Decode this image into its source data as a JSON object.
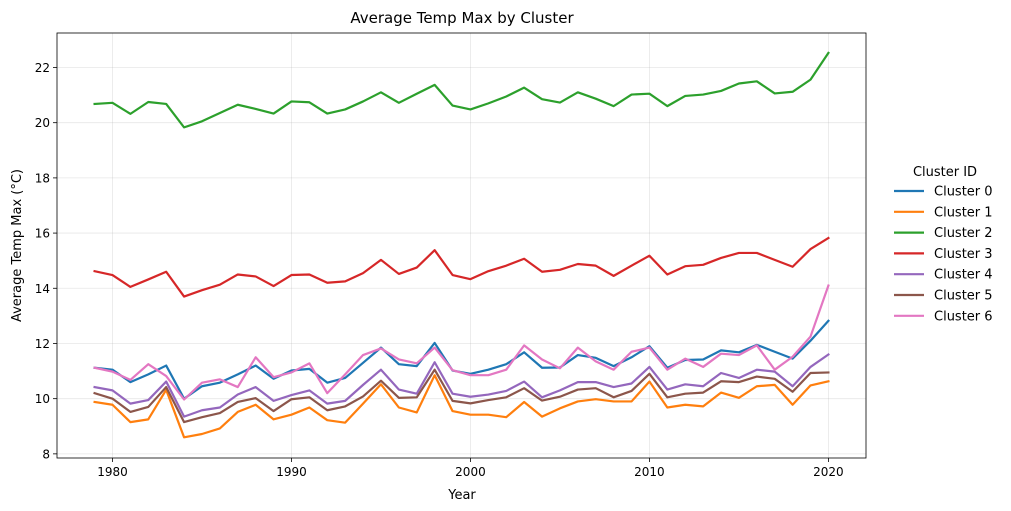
{
  "chart_data": {
    "type": "line",
    "title": "Average Temp Max by Cluster",
    "xlabel": "Year",
    "ylabel": "Average Temp Max (°C)",
    "xlim": [
      1976.9,
      2022.1
    ],
    "ylim": [
      7.85,
      23.25
    ],
    "xticks": [
      1980,
      1990,
      2000,
      2010,
      2020
    ],
    "yticks": [
      8,
      10,
      12,
      14,
      16,
      18,
      20,
      22
    ],
    "grid": true,
    "legend": {
      "title": "Cluster ID",
      "placement": "right-outside"
    },
    "x": [
      1979,
      1980,
      1981,
      1982,
      1983,
      1984,
      1985,
      1986,
      1987,
      1988,
      1989,
      1990,
      1991,
      1992,
      1993,
      1994,
      1995,
      1996,
      1997,
      1998,
      1999,
      2000,
      2001,
      2002,
      2003,
      2004,
      2005,
      2006,
      2007,
      2008,
      2009,
      2010,
      2011,
      2012,
      2013,
      2014,
      2015,
      2016,
      2017,
      2018,
      2019,
      2020
    ],
    "series": [
      {
        "name": "Cluster 0",
        "color": "#1f77b4",
        "values": [
          11.12,
          11.05,
          10.6,
          10.88,
          11.2,
          10.0,
          10.45,
          10.58,
          10.88,
          11.2,
          10.72,
          11.02,
          11.08,
          10.58,
          10.75,
          11.3,
          11.85,
          11.25,
          11.18,
          12.02,
          11.02,
          10.9,
          11.05,
          11.25,
          11.68,
          11.12,
          11.13,
          11.58,
          11.48,
          11.18,
          11.5,
          11.9,
          11.12,
          11.4,
          11.42,
          11.75,
          11.68,
          11.95,
          11.7,
          11.45,
          12.1,
          12.82
        ]
      },
      {
        "name": "Cluster 1",
        "color": "#ff7f0e",
        "values": [
          9.88,
          9.78,
          9.15,
          9.25,
          10.32,
          8.6,
          8.72,
          8.92,
          9.52,
          9.78,
          9.25,
          9.42,
          9.68,
          9.22,
          9.13,
          9.82,
          10.52,
          9.68,
          9.5,
          10.85,
          9.55,
          9.42,
          9.42,
          9.33,
          9.88,
          9.35,
          9.65,
          9.9,
          9.98,
          9.9,
          9.9,
          10.62,
          9.68,
          9.78,
          9.72,
          10.22,
          10.03,
          10.45,
          10.5,
          9.78,
          10.48,
          10.63
        ]
      },
      {
        "name": "Cluster 2",
        "color": "#2ca02c",
        "values": [
          20.68,
          20.72,
          20.32,
          20.75,
          20.68,
          19.83,
          20.05,
          20.35,
          20.65,
          20.5,
          20.33,
          20.77,
          20.74,
          20.33,
          20.48,
          20.77,
          21.1,
          20.72,
          21.05,
          21.37,
          20.62,
          20.48,
          20.7,
          20.95,
          21.27,
          20.85,
          20.73,
          21.1,
          20.87,
          20.6,
          21.02,
          21.05,
          20.6,
          20.97,
          21.02,
          21.15,
          21.42,
          21.5,
          21.06,
          21.12,
          21.56,
          22.53
        ]
      },
      {
        "name": "Cluster 3",
        "color": "#d62728",
        "values": [
          14.62,
          14.48,
          14.05,
          14.32,
          14.6,
          13.7,
          13.93,
          14.13,
          14.5,
          14.43,
          14.08,
          14.48,
          14.5,
          14.2,
          14.25,
          14.55,
          15.03,
          14.52,
          14.75,
          15.38,
          14.48,
          14.33,
          14.62,
          14.82,
          15.07,
          14.6,
          14.67,
          14.88,
          14.82,
          14.45,
          14.82,
          15.18,
          14.5,
          14.8,
          14.85,
          15.1,
          15.28,
          15.28,
          15.03,
          14.78,
          15.42,
          15.82
        ]
      },
      {
        "name": "Cluster 4",
        "color": "#9467bd",
        "values": [
          10.42,
          10.3,
          9.82,
          9.95,
          10.62,
          9.35,
          9.58,
          9.68,
          10.15,
          10.42,
          9.92,
          10.13,
          10.3,
          9.82,
          9.92,
          10.5,
          11.05,
          10.33,
          10.18,
          11.32,
          10.18,
          10.07,
          10.15,
          10.28,
          10.62,
          10.05,
          10.3,
          10.6,
          10.6,
          10.42,
          10.55,
          11.15,
          10.33,
          10.52,
          10.45,
          10.93,
          10.75,
          11.05,
          10.98,
          10.45,
          11.15,
          11.6
        ]
      },
      {
        "name": "Cluster 5",
        "color": "#8c564b",
        "values": [
          10.2,
          10.0,
          9.52,
          9.7,
          10.42,
          9.15,
          9.33,
          9.48,
          9.88,
          10.02,
          9.55,
          9.98,
          10.05,
          9.58,
          9.72,
          10.08,
          10.65,
          10.03,
          10.05,
          11.05,
          9.92,
          9.83,
          9.95,
          10.05,
          10.38,
          9.93,
          10.07,
          10.33,
          10.38,
          10.05,
          10.28,
          10.9,
          10.05,
          10.18,
          10.22,
          10.63,
          10.6,
          10.8,
          10.72,
          10.25,
          10.93,
          10.95
        ]
      },
      {
        "name": "Cluster 6",
        "color": "#e377c2",
        "values": [
          11.12,
          10.98,
          10.68,
          11.25,
          10.82,
          9.97,
          10.58,
          10.7,
          10.42,
          11.5,
          10.78,
          10.95,
          11.28,
          10.2,
          10.88,
          11.58,
          11.82,
          11.42,
          11.28,
          11.85,
          11.03,
          10.85,
          10.85,
          11.05,
          11.93,
          11.42,
          11.1,
          11.85,
          11.35,
          11.05,
          11.7,
          11.85,
          11.05,
          11.45,
          11.15,
          11.63,
          11.58,
          11.93,
          11.05,
          11.52,
          12.25,
          14.1
        ]
      }
    ]
  }
}
